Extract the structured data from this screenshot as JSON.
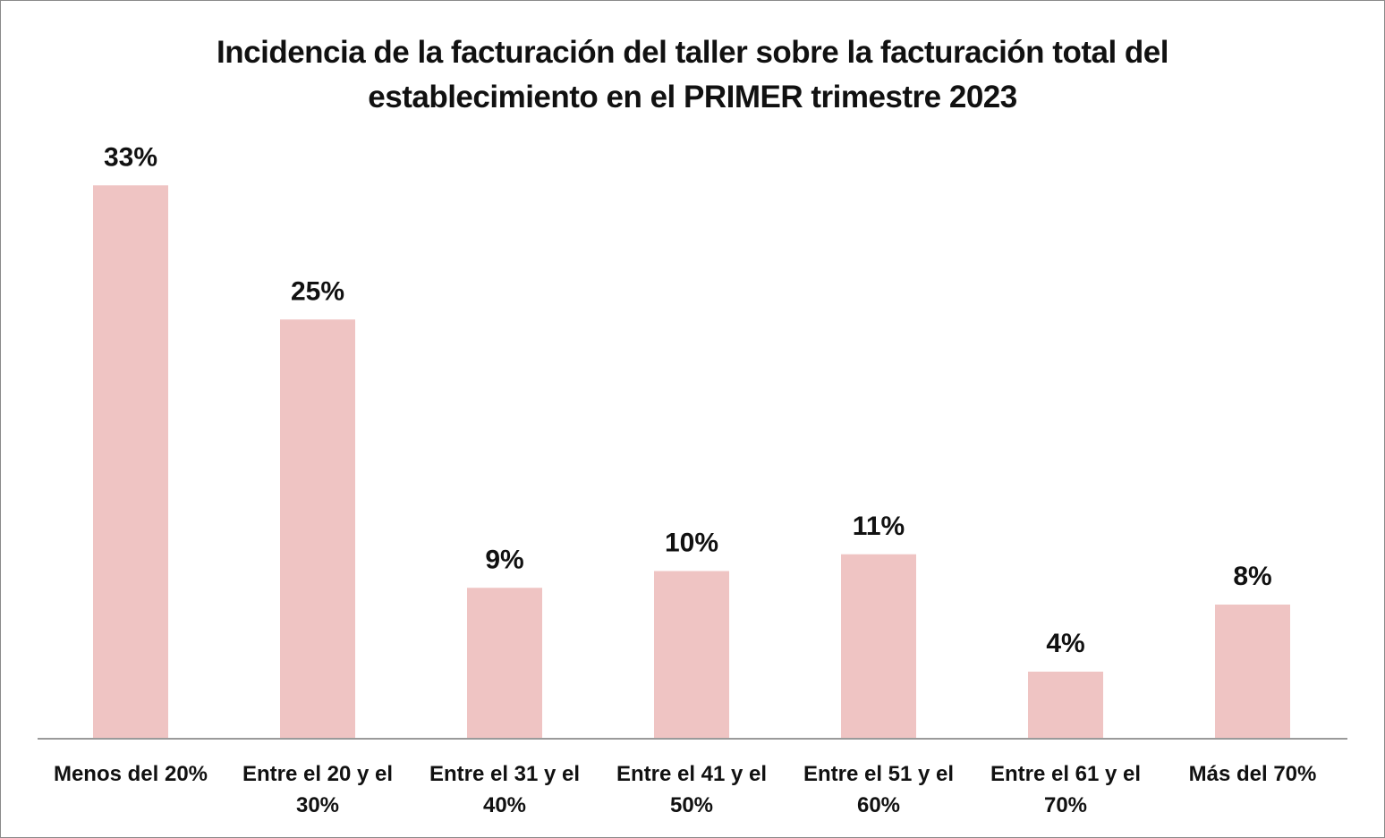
{
  "chart_data": {
    "type": "bar",
    "title_lines": [
      "Incidencia de la facturación del taller sobre la facturación total del",
      "establecimiento en el PRIMER trimestre 2023"
    ],
    "categories": [
      [
        "Menos del 20%"
      ],
      [
        "Entre el 20 y el",
        "30%"
      ],
      [
        "Entre el 31 y el",
        "40%"
      ],
      [
        "Entre el 41 y el",
        "50%"
      ],
      [
        "Entre el 51 y el",
        "60%"
      ],
      [
        "Entre el 61 y el",
        "70%"
      ],
      [
        "Más del 70%"
      ]
    ],
    "values": [
      33,
      25,
      9,
      10,
      11,
      4,
      8
    ],
    "value_labels": [
      "33%",
      "25%",
      "9%",
      "10%",
      "11%",
      "4%",
      "8%"
    ],
    "unit": "%",
    "ylim": [
      0,
      33
    ],
    "grid": false,
    "legend": "none",
    "bar_color": "#efc4c3",
    "axis_color": "#9a9a9a"
  }
}
